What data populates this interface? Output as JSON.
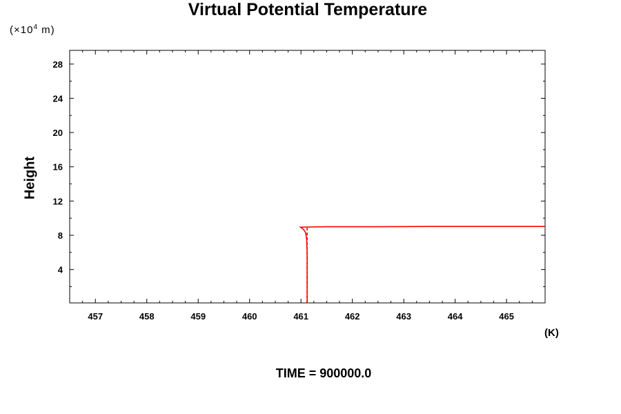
{
  "chart_data": {
    "type": "line",
    "title": "Virtual Potential Temperature",
    "ylabel": "Height",
    "yunit_prefix": "(×10",
    "yunit_exp": "4",
    "yunit_suffix": " m)",
    "xunit": "(K)",
    "xlim": [
      456.5,
      465.75
    ],
    "ylim": [
      0.1,
      29.6
    ],
    "x_ticks": [
      457,
      458,
      459,
      460,
      461,
      462,
      463,
      464,
      465
    ],
    "y_ticks": [
      4,
      8,
      12,
      16,
      20,
      24,
      28
    ],
    "grid": false,
    "series": [
      {
        "line_color": "#ff0000",
        "points": [
          [
            461.12,
            0.1
          ],
          [
            461.12,
            2.0
          ],
          [
            461.12,
            4.0
          ],
          [
            461.12,
            6.0
          ],
          [
            461.11,
            7.6
          ],
          [
            461.09,
            8.3
          ],
          [
            461.05,
            8.7
          ],
          [
            460.99,
            8.95
          ],
          [
            461.5,
            9.0
          ],
          [
            462.5,
            9.0
          ],
          [
            463.5,
            9.03
          ],
          [
            464.5,
            9.03
          ],
          [
            465.75,
            9.03
          ]
        ]
      },
      {
        "line_color": "#ff0000",
        "dashed": true,
        "points": [
          [
            461.12,
            0.1
          ],
          [
            461.12,
            8.95
          ]
        ]
      }
    ]
  },
  "footer": "TIME = 900000.0"
}
